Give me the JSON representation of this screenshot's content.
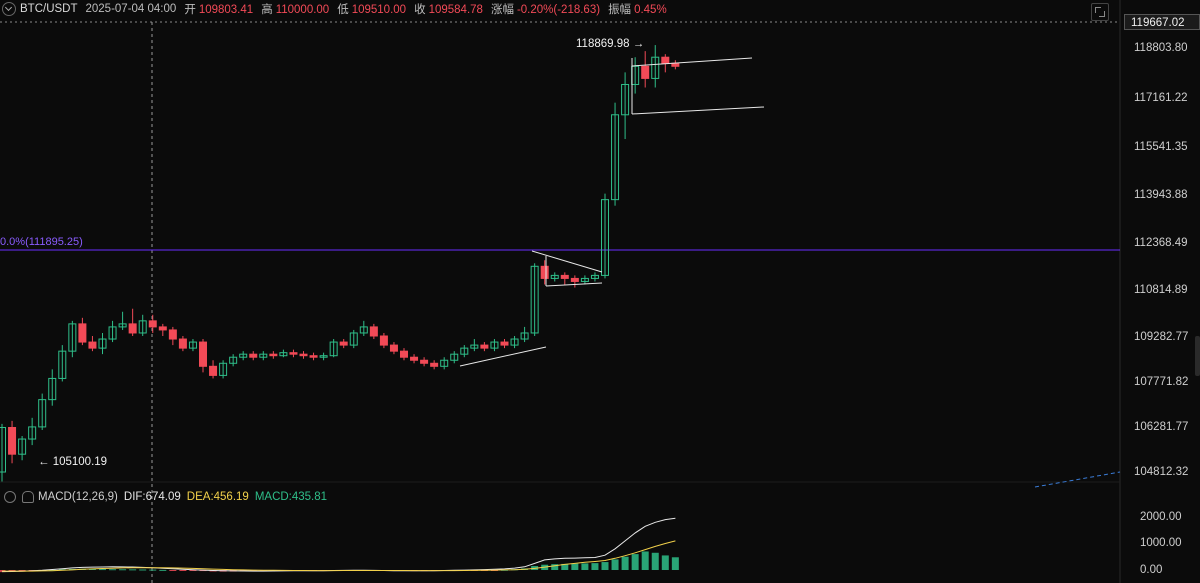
{
  "header": {
    "symbol": "BTC/USDT",
    "datetime": "2025-07-04 04:00",
    "open_label": "开",
    "open_value": "109803.41",
    "high_label": "高",
    "high_value": "110000.00",
    "low_label": "低",
    "low_value": "109510.00",
    "close_label": "收",
    "close_value": "109584.78",
    "change_label": "涨幅",
    "change_value": "-0.20%(-218.63)",
    "amplitude_label": "振幅",
    "amplitude_value": "0.45%"
  },
  "price_axis": {
    "current_price": "119667.02",
    "ticks": [
      "118803.80",
      "117161.22",
      "115541.35",
      "113943.88",
      "112368.49",
      "110814.89",
      "109282.77",
      "107771.82",
      "106281.77",
      "104812.32"
    ],
    "macd_ticks": [
      "2000.00",
      "1000.00",
      "0.00"
    ]
  },
  "fib_label": "0.0%(111895.25)",
  "annotations": {
    "high_marker": "118869.98 →",
    "low_marker": "← 105100.19"
  },
  "macd_legend": {
    "name": "MACD(12,26,9)",
    "dif": "DIF:674.09",
    "dea": "DEA:456.19",
    "macd": "MACD:435.81"
  },
  "colors": {
    "up": "#2fbf8a",
    "down": "#f24a57",
    "fib_line": "#6a2cff",
    "dea_line": "#f2d14b"
  },
  "candles": [
    [
      104812,
      106281,
      104500,
      106400
    ],
    [
      106281,
      105400,
      105100,
      106500
    ],
    [
      105400,
      105900,
      105200,
      106000
    ],
    [
      105900,
      106300,
      105700,
      106600
    ],
    [
      106300,
      107200,
      106200,
      107400
    ],
    [
      107200,
      107900,
      107000,
      108200
    ],
    [
      107900,
      108800,
      107800,
      109000
    ],
    [
      108800,
      109700,
      108600,
      109800
    ],
    [
      109700,
      109100,
      109000,
      109900
    ],
    [
      109100,
      108900,
      108800,
      109300
    ],
    [
      108900,
      109200,
      108700,
      109400
    ],
    [
      109200,
      109600,
      109100,
      109800
    ],
    [
      109600,
      109700,
      109500,
      110100
    ],
    [
      109700,
      109400,
      109300,
      110200
    ],
    [
      109400,
      109800,
      109300,
      110000
    ],
    [
      109800,
      109600,
      109400,
      110000
    ],
    [
      109600,
      109500,
      109300,
      109700
    ],
    [
      109500,
      109200,
      109000,
      109600
    ],
    [
      109200,
      108900,
      108800,
      109300
    ],
    [
      108900,
      109100,
      108800,
      109200
    ],
    [
      109100,
      108300,
      108100,
      109200
    ],
    [
      108300,
      108000,
      107900,
      108500
    ],
    [
      108000,
      108400,
      107900,
      108500
    ],
    [
      108400,
      108600,
      108300,
      108700
    ],
    [
      108600,
      108700,
      108500,
      108800
    ],
    [
      108700,
      108600,
      108500,
      108800
    ],
    [
      108600,
      108700,
      108500,
      108800
    ],
    [
      108700,
      108650,
      108550,
      108800
    ],
    [
      108650,
      108750,
      108600,
      108850
    ],
    [
      108750,
      108700,
      108600,
      108850
    ],
    [
      108700,
      108650,
      108550,
      108800
    ],
    [
      108650,
      108600,
      108500,
      108750
    ],
    [
      108600,
      108650,
      108500,
      108750
    ],
    [
      108650,
      109100,
      108600,
      109200
    ],
    [
      109100,
      109000,
      108900,
      109200
    ],
    [
      109000,
      109400,
      108900,
      109500
    ],
    [
      109400,
      109600,
      109300,
      109800
    ],
    [
      109600,
      109300,
      109200,
      109700
    ],
    [
      109300,
      109000,
      108900,
      109400
    ],
    [
      109000,
      108800,
      108700,
      109100
    ],
    [
      108800,
      108600,
      108500,
      108900
    ],
    [
      108600,
      108500,
      108400,
      108700
    ],
    [
      108500,
      108400,
      108300,
      108600
    ],
    [
      108400,
      108300,
      108200,
      108500
    ],
    [
      108300,
      108500,
      108200,
      108600
    ],
    [
      108500,
      108700,
      108400,
      108800
    ],
    [
      108700,
      108900,
      108600,
      109000
    ],
    [
      108900,
      109000,
      108800,
      109200
    ],
    [
      109000,
      108900,
      108800,
      109100
    ],
    [
      108900,
      109100,
      108800,
      109200
    ],
    [
      109100,
      109000,
      108900,
      109200
    ],
    [
      109000,
      109200,
      108900,
      109300
    ],
    [
      109200,
      109400,
      109100,
      109600
    ],
    [
      109400,
      111600,
      109300,
      111700
    ],
    [
      111600,
      111200,
      111000,
      111800
    ],
    [
      111200,
      111300,
      111100,
      111400
    ],
    [
      111300,
      111200,
      111000,
      111400
    ],
    [
      111200,
      111100,
      110900,
      111300
    ],
    [
      111100,
      111200,
      111000,
      111300
    ],
    [
      111200,
      111300,
      111100,
      111400
    ],
    [
      111300,
      113800,
      111200,
      114000
    ],
    [
      113800,
      116600,
      113600,
      117000
    ],
    [
      116600,
      117600,
      115800,
      118000
    ],
    [
      117600,
      118200,
      117300,
      118500
    ],
    [
      118200,
      117800,
      117500,
      118700
    ],
    [
      117800,
      118500,
      117500,
      118900
    ],
    [
      118500,
      118300,
      118000,
      118600
    ],
    [
      118300,
      118200,
      118100,
      118400
    ]
  ],
  "macd_hist": [
    -80,
    -70,
    -60,
    -40,
    -20,
    10,
    30,
    40,
    45,
    40,
    35,
    30,
    28,
    25,
    20,
    15,
    5,
    -5,
    -15,
    -25,
    -40,
    -55,
    -60,
    -58,
    -55,
    -50,
    -45,
    -40,
    -35,
    -30,
    -25,
    -20,
    -15,
    -10,
    -8,
    -10,
    -15,
    -20,
    -25,
    -30,
    -35,
    -40,
    -40,
    -35,
    -30,
    -25,
    -20,
    -15,
    -10,
    -5,
    10,
    30,
    60,
    150,
    200,
    220,
    230,
    240,
    250,
    260,
    300,
    400,
    500,
    600,
    700,
    650,
    550,
    480
  ],
  "macd_dif": [
    -60,
    -55,
    -45,
    -30,
    -10,
    20,
    50,
    80,
    100,
    110,
    115,
    120,
    118,
    112,
    100,
    85,
    65,
    45,
    25,
    10,
    -5,
    -20,
    -30,
    -35,
    -38,
    -40,
    -40,
    -38,
    -35,
    -32,
    -30,
    -28,
    -25,
    -20,
    -15,
    -12,
    -12,
    -15,
    -20,
    -25,
    -30,
    -32,
    -30,
    -26,
    -20,
    -12,
    -5,
    5,
    15,
    25,
    40,
    70,
    120,
    250,
    380,
    420,
    440,
    450,
    460,
    470,
    560,
    800,
    1100,
    1400,
    1650,
    1800,
    1900,
    1950
  ],
  "macd_dea": [
    -40,
    -42,
    -43,
    -40,
    -35,
    -25,
    -10,
    5,
    25,
    40,
    55,
    68,
    78,
    85,
    88,
    88,
    85,
    80,
    72,
    60,
    48,
    35,
    22,
    12,
    5,
    -2,
    -8,
    -12,
    -15,
    -18,
    -20,
    -22,
    -23,
    -22,
    -20,
    -18,
    -17,
    -17,
    -18,
    -19,
    -20,
    -22,
    -23,
    -24,
    -23,
    -21,
    -18,
    -14,
    -9,
    -4,
    2,
    12,
    30,
    60,
    110,
    160,
    210,
    250,
    290,
    320,
    360,
    440,
    540,
    650,
    770,
    890,
    1000,
    1100
  ]
}
